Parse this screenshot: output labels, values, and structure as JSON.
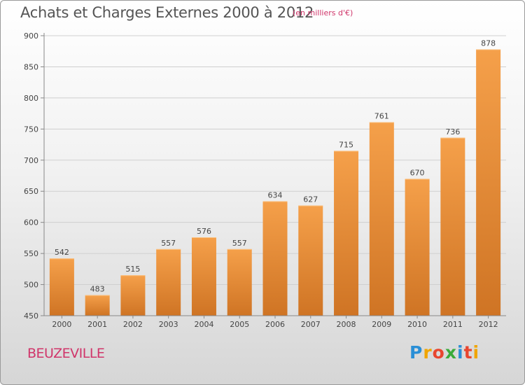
{
  "header": {
    "title": "Achats et Charges Externes 2000 à 2012",
    "subtitle": "(en milliers d'€)"
  },
  "footer": {
    "commune": "BEUZEVILLE",
    "logo": "Proxiti",
    "logo_letters": [
      {
        "ch": "P",
        "color": "#2a8fd6"
      },
      {
        "ch": "r",
        "color": "#f0a500"
      },
      {
        "ch": "o",
        "color": "#e8462f"
      },
      {
        "ch": "x",
        "color": "#3aab3a"
      },
      {
        "ch": "i",
        "color": "#2a8fd6"
      },
      {
        "ch": "t",
        "color": "#e8462f"
      },
      {
        "ch": "i",
        "color": "#f0a500"
      }
    ]
  },
  "chart_data": {
    "type": "bar",
    "title": "Achats et Charges Externes 2000 à 2012",
    "subtitle": "(en milliers d'€)",
    "xlabel": "",
    "ylabel": "",
    "categories": [
      "2000",
      "2001",
      "2002",
      "2003",
      "2004",
      "2005",
      "2006",
      "2007",
      "2008",
      "2009",
      "2010",
      "2011",
      "2012"
    ],
    "values": [
      542,
      483,
      515,
      557,
      576,
      557,
      634,
      627,
      715,
      761,
      670,
      736,
      878
    ],
    "ylim": [
      450,
      900
    ],
    "yticks": [
      450,
      500,
      550,
      600,
      650,
      700,
      750,
      800,
      850,
      900
    ],
    "grid": true,
    "bar_color": "#f5a04a",
    "bar_color_dark": "#cf7424"
  }
}
